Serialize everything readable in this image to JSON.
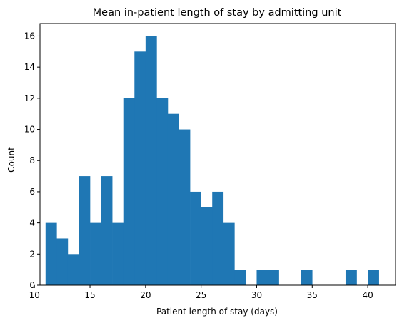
{
  "chart_data": {
    "type": "bar",
    "title": "Mean in-patient length of stay by admitting unit",
    "xlabel": "Patient length of stay (days)",
    "ylabel": "Count",
    "bins": [
      {
        "start": 11.0,
        "end": 12.0,
        "count": 4
      },
      {
        "start": 12.0,
        "end": 13.0,
        "count": 3
      },
      {
        "start": 13.0,
        "end": 14.0,
        "count": 2
      },
      {
        "start": 14.0,
        "end": 15.0,
        "count": 7
      },
      {
        "start": 15.0,
        "end": 16.0,
        "count": 4
      },
      {
        "start": 16.0,
        "end": 17.0,
        "count": 7
      },
      {
        "start": 17.0,
        "end": 18.0,
        "count": 4
      },
      {
        "start": 18.0,
        "end": 19.0,
        "count": 12
      },
      {
        "start": 19.0,
        "end": 20.0,
        "count": 15
      },
      {
        "start": 20.0,
        "end": 21.0,
        "count": 16
      },
      {
        "start": 21.0,
        "end": 22.0,
        "count": 12
      },
      {
        "start": 22.0,
        "end": 23.0,
        "count": 11
      },
      {
        "start": 23.0,
        "end": 24.0,
        "count": 10
      },
      {
        "start": 24.0,
        "end": 25.0,
        "count": 6
      },
      {
        "start": 25.0,
        "end": 26.0,
        "count": 5
      },
      {
        "start": 26.0,
        "end": 27.0,
        "count": 6
      },
      {
        "start": 27.0,
        "end": 28.0,
        "count": 4
      },
      {
        "start": 28.0,
        "end": 29.0,
        "count": 1
      },
      {
        "start": 29.0,
        "end": 30.0,
        "count": 0
      },
      {
        "start": 30.0,
        "end": 31.0,
        "count": 1
      },
      {
        "start": 31.0,
        "end": 32.0,
        "count": 1
      },
      {
        "start": 32.0,
        "end": 33.0,
        "count": 0
      },
      {
        "start": 33.0,
        "end": 34.0,
        "count": 0
      },
      {
        "start": 34.0,
        "end": 35.0,
        "count": 1
      },
      {
        "start": 35.0,
        "end": 36.0,
        "count": 0
      },
      {
        "start": 36.0,
        "end": 37.0,
        "count": 0
      },
      {
        "start": 37.0,
        "end": 38.0,
        "count": 0
      },
      {
        "start": 38.0,
        "end": 39.0,
        "count": 1
      },
      {
        "start": 39.0,
        "end": 40.0,
        "count": 0
      },
      {
        "start": 40.0,
        "end": 41.0,
        "count": 1
      }
    ],
    "xlim": [
      10.5,
      42.5
    ],
    "ylim": [
      0,
      16.8
    ],
    "xticks": [
      10,
      15,
      20,
      25,
      30,
      35,
      40
    ],
    "yticks": [
      0,
      2,
      4,
      6,
      8,
      10,
      12,
      14,
      16
    ],
    "bar_color": "#1f77b4",
    "grid": false,
    "legend": "none"
  }
}
